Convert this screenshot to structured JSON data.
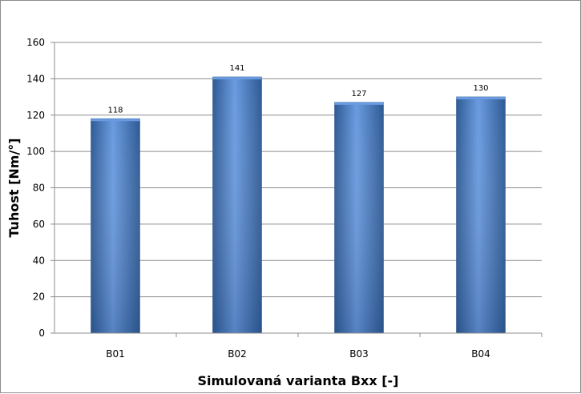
{
  "chart_data": {
    "type": "bar",
    "categories": [
      "B01",
      "B02",
      "B03",
      "B04"
    ],
    "values": [
      118,
      141,
      127,
      130
    ],
    "data_labels": [
      "118",
      "141",
      "127",
      "130"
    ],
    "xlabel": "Simulovaná varianta Bxx [-]",
    "ylabel": "Tuhost [Nm/°]",
    "ylim": [
      0,
      160
    ],
    "yticks": [
      0,
      20,
      40,
      60,
      80,
      100,
      120,
      140,
      160
    ],
    "grid": true,
    "legend": "none",
    "bar_color": "#4a7ebb",
    "bar_color_dark": "#2e5a94",
    "bar_color_light": "#6a9be0"
  }
}
